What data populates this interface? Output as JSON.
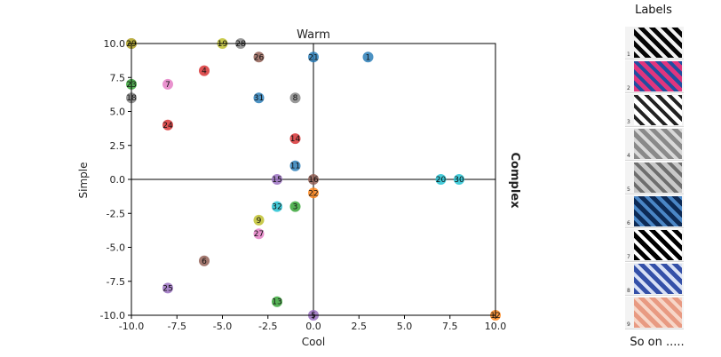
{
  "chart_data": {
    "type": "scatter",
    "title": "Warm",
    "xlabel": "Cool",
    "ylabel": "Simple",
    "right_label": "Complex",
    "xlim": [
      -10,
      10
    ],
    "ylim": [
      -10,
      10
    ],
    "xticks": [
      "-10.0",
      "-7.5",
      "-5.0",
      "-2.5",
      "0.0",
      "2.5",
      "5.0",
      "7.5",
      "10.0"
    ],
    "yticks": [
      "10.0",
      "7.5",
      "5.0",
      "2.5",
      "0.0",
      "-2.5",
      "-5.0",
      "-7.5",
      "-10.0"
    ],
    "grid": false,
    "points": [
      {
        "label": "1",
        "x": 3,
        "y": 9,
        "color": "#1f77b4"
      },
      {
        "label": "2",
        "x": -10,
        "y": 10,
        "color": "#ff7f0e"
      },
      {
        "label": "3",
        "x": -1,
        "y": -2,
        "color": "#2ca02c"
      },
      {
        "label": "4",
        "x": -6,
        "y": 8,
        "color": "#d62728"
      },
      {
        "label": "5",
        "x": 0,
        "y": -10,
        "color": "#9467bd"
      },
      {
        "label": "6",
        "x": -6,
        "y": -6,
        "color": "#8c564b"
      },
      {
        "label": "7",
        "x": -8,
        "y": 7,
        "color": "#e377c2"
      },
      {
        "label": "8",
        "x": -1,
        "y": 6,
        "color": "#7f7f7f"
      },
      {
        "label": "9",
        "x": -3,
        "y": -3,
        "color": "#bcbd22"
      },
      {
        "label": "10",
        "x": -10,
        "y": 10,
        "color": "#17becf"
      },
      {
        "label": "11",
        "x": -1,
        "y": 1,
        "color": "#1f77b4"
      },
      {
        "label": "12",
        "x": 10,
        "y": -10,
        "color": "#ff7f0e"
      },
      {
        "label": "13",
        "x": -2,
        "y": -9,
        "color": "#2ca02c"
      },
      {
        "label": "14",
        "x": -1,
        "y": 3,
        "color": "#d62728"
      },
      {
        "label": "15",
        "x": -2,
        "y": 0,
        "color": "#9467bd"
      },
      {
        "label": "16",
        "x": 0,
        "y": 0,
        "color": "#8c564b"
      },
      {
        "label": "17",
        "x": -10,
        "y": 10,
        "color": "#e377c2"
      },
      {
        "label": "18",
        "x": -10,
        "y": 6,
        "color": "#7f7f7f"
      },
      {
        "label": "19",
        "x": -5,
        "y": 10,
        "color": "#bcbd22"
      },
      {
        "label": "20",
        "x": 7,
        "y": 0,
        "color": "#17becf"
      },
      {
        "label": "21",
        "x": 0,
        "y": 9,
        "color": "#1f77b4"
      },
      {
        "label": "22",
        "x": 0,
        "y": -1,
        "color": "#ff7f0e"
      },
      {
        "label": "23",
        "x": -10,
        "y": 7,
        "color": "#2ca02c"
      },
      {
        "label": "24",
        "x": -8,
        "y": 4,
        "color": "#d62728"
      },
      {
        "label": "25",
        "x": -8,
        "y": -8,
        "color": "#9467bd"
      },
      {
        "label": "26",
        "x": -3,
        "y": 9,
        "color": "#8c564b"
      },
      {
        "label": "27",
        "x": -3,
        "y": -4,
        "color": "#e377c2"
      },
      {
        "label": "28",
        "x": -4,
        "y": 10,
        "color": "#7f7f7f"
      },
      {
        "label": "29",
        "x": -10,
        "y": 10,
        "color": "#bcbd22"
      },
      {
        "label": "30",
        "x": 8,
        "y": 0,
        "color": "#17becf"
      },
      {
        "label": "31",
        "x": -3,
        "y": 6,
        "color": "#1f77b4"
      },
      {
        "label": "32",
        "x": -2,
        "y": -2,
        "color": "#17becf"
      }
    ]
  },
  "labels_panel": {
    "title": "Labels",
    "footer": "So on .....",
    "thumbnails": [
      {
        "num": "1",
        "palette": [
          "#050505",
          "#f2f2f2"
        ]
      },
      {
        "num": "2",
        "palette": [
          "#e0357e",
          "#1f4fa0"
        ]
      },
      {
        "num": "3",
        "palette": [
          "#ffffff",
          "#222222"
        ]
      },
      {
        "num": "4",
        "palette": [
          "#8a8a8a",
          "#d9d9d9"
        ]
      },
      {
        "num": "5",
        "palette": [
          "#c9c9c9",
          "#6e6e6e"
        ]
      },
      {
        "num": "6",
        "palette": [
          "#0d2a55",
          "#4a86c6"
        ]
      },
      {
        "num": "7",
        "palette": [
          "#000000",
          "#ffffff"
        ]
      },
      {
        "num": "8",
        "palette": [
          "#3450a8",
          "#d9e1f5"
        ]
      },
      {
        "num": "9",
        "palette": [
          "#e89a82",
          "#f7d6c8"
        ]
      }
    ]
  }
}
